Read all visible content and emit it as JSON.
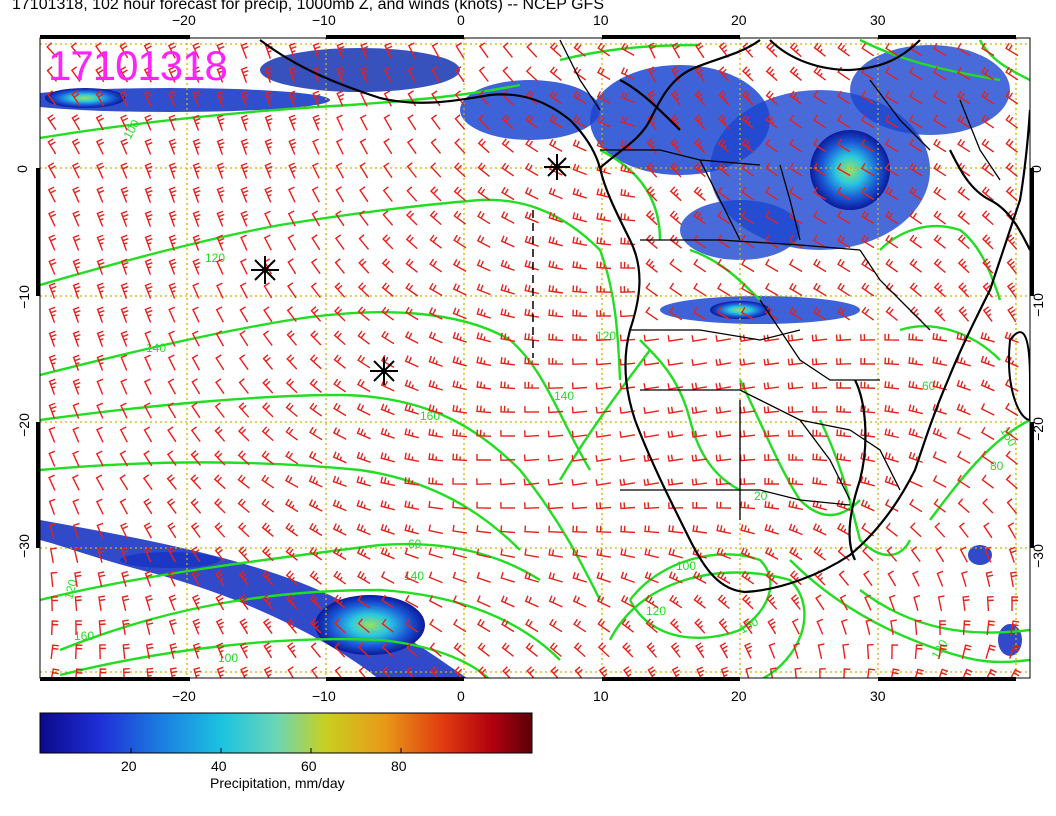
{
  "title": "17101318, 102 hour forecast for precip, 1000mb Z, and winds (knots) -- NCEP GFS",
  "stamp": "17101318",
  "colors": {
    "barbs": "#e8201a",
    "contours": "#22dd22",
    "coast": "#000000",
    "grid": "#d4b000",
    "stamp": "#ff22ff"
  },
  "map": {
    "lon_ticks": [
      "−20",
      "−10",
      "0",
      "10",
      "20",
      "30"
    ],
    "lat_ticks": [
      "0",
      "−10",
      "−20",
      "−30"
    ],
    "contour_labels": [
      "100",
      "120",
      "140",
      "140",
      "160",
      "160",
      "120",
      "60",
      "120",
      "160",
      "100",
      "60",
      "80",
      "120",
      "140",
      "20",
      "120",
      "100",
      "160"
    ]
  },
  "colorbar": {
    "labels": [
      "20",
      "40",
      "60",
      "80"
    ],
    "title": "Precipitation, mm/day"
  }
}
